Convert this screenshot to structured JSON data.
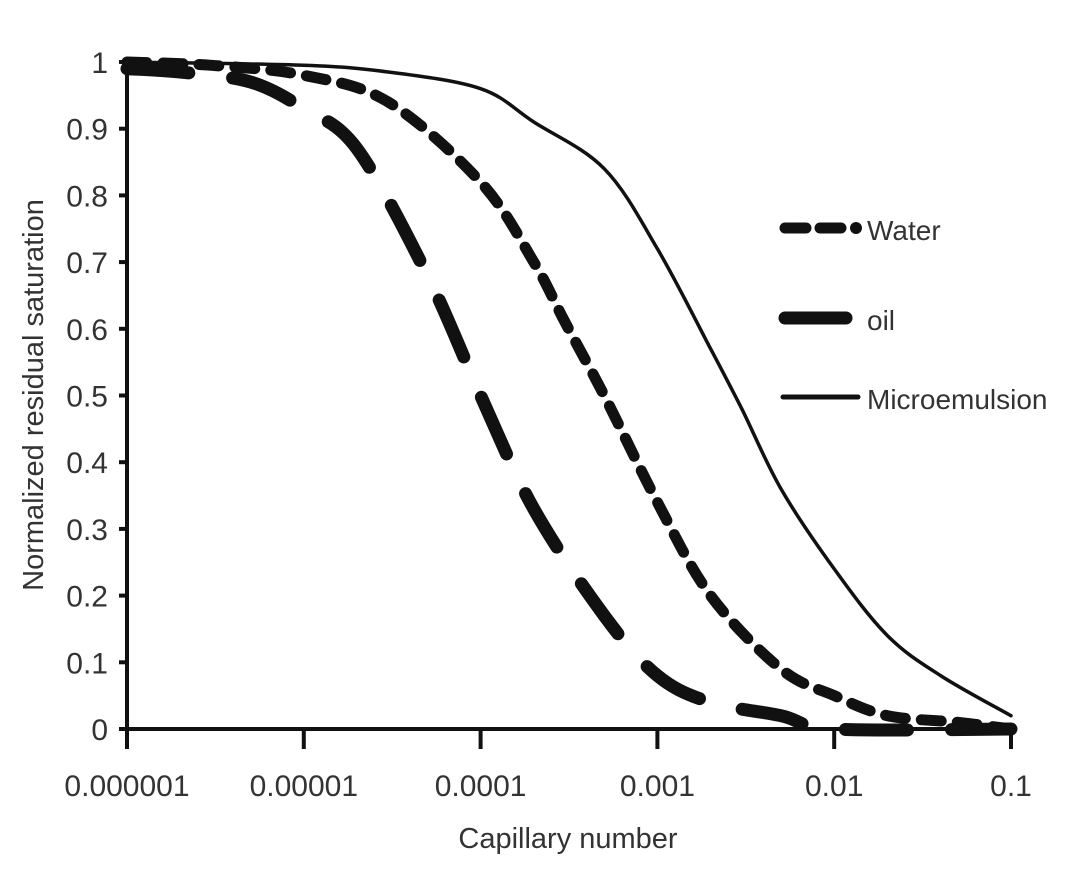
{
  "chart_data": {
    "type": "line",
    "title": "",
    "xlabel": "Capillary number",
    "ylabel": "Normalized residual saturation",
    "xscale": "log",
    "xlim": [
      1e-06,
      0.1
    ],
    "ylim": [
      0,
      1
    ],
    "grid": false,
    "legend_position": "right-center-inside",
    "x_ticks": [
      "0.000001",
      "0.00001",
      "0.0001",
      "0.001",
      "0.01",
      "0.1"
    ],
    "y_ticks": [
      "0",
      "0.1",
      "0.2",
      "0.3",
      "0.4",
      "0.5",
      "0.6",
      "0.7",
      "0.8",
      "0.9",
      "1"
    ],
    "series": [
      {
        "name": "Water",
        "style": "short-dash",
        "x": [
          1e-06,
          3e-06,
          1e-05,
          3e-05,
          0.0001,
          0.0002,
          0.0003,
          0.0005,
          0.001,
          0.002,
          0.005,
          0.01,
          0.02,
          0.05,
          0.1
        ],
        "values": [
          1.0,
          0.995,
          0.98,
          0.94,
          0.82,
          0.7,
          0.61,
          0.5,
          0.34,
          0.2,
          0.09,
          0.05,
          0.02,
          0.01,
          0.0
        ]
      },
      {
        "name": "oil",
        "style": "long-dash",
        "x": [
          1e-06,
          2e-06,
          5e-06,
          1e-05,
          2e-05,
          5e-05,
          0.0001,
          0.0002,
          0.0005,
          0.001,
          0.002,
          0.005,
          0.01,
          0.1
        ],
        "values": [
          0.99,
          0.985,
          0.97,
          0.93,
          0.87,
          0.68,
          0.5,
          0.33,
          0.17,
          0.08,
          0.04,
          0.02,
          0.0,
          0.0
        ]
      },
      {
        "name": "Microemulsion",
        "style": "solid",
        "x": [
          1e-06,
          1e-05,
          3e-05,
          0.0001,
          0.0002,
          0.0005,
          0.001,
          0.002,
          0.003,
          0.005,
          0.01,
          0.02,
          0.04,
          0.1
        ],
        "values": [
          1.0,
          0.995,
          0.985,
          0.96,
          0.91,
          0.84,
          0.72,
          0.57,
          0.48,
          0.36,
          0.24,
          0.14,
          0.08,
          0.02
        ]
      }
    ]
  },
  "legend": {
    "items": [
      {
        "label": "Water"
      },
      {
        "label": "oil"
      },
      {
        "label": "Microemulsion"
      }
    ]
  },
  "axes": {
    "x_title": "Capillary number",
    "y_title": "Normalized residual saturation"
  },
  "colors": {
    "line": "#111111",
    "text": "#333333",
    "background": "#ffffff"
  }
}
